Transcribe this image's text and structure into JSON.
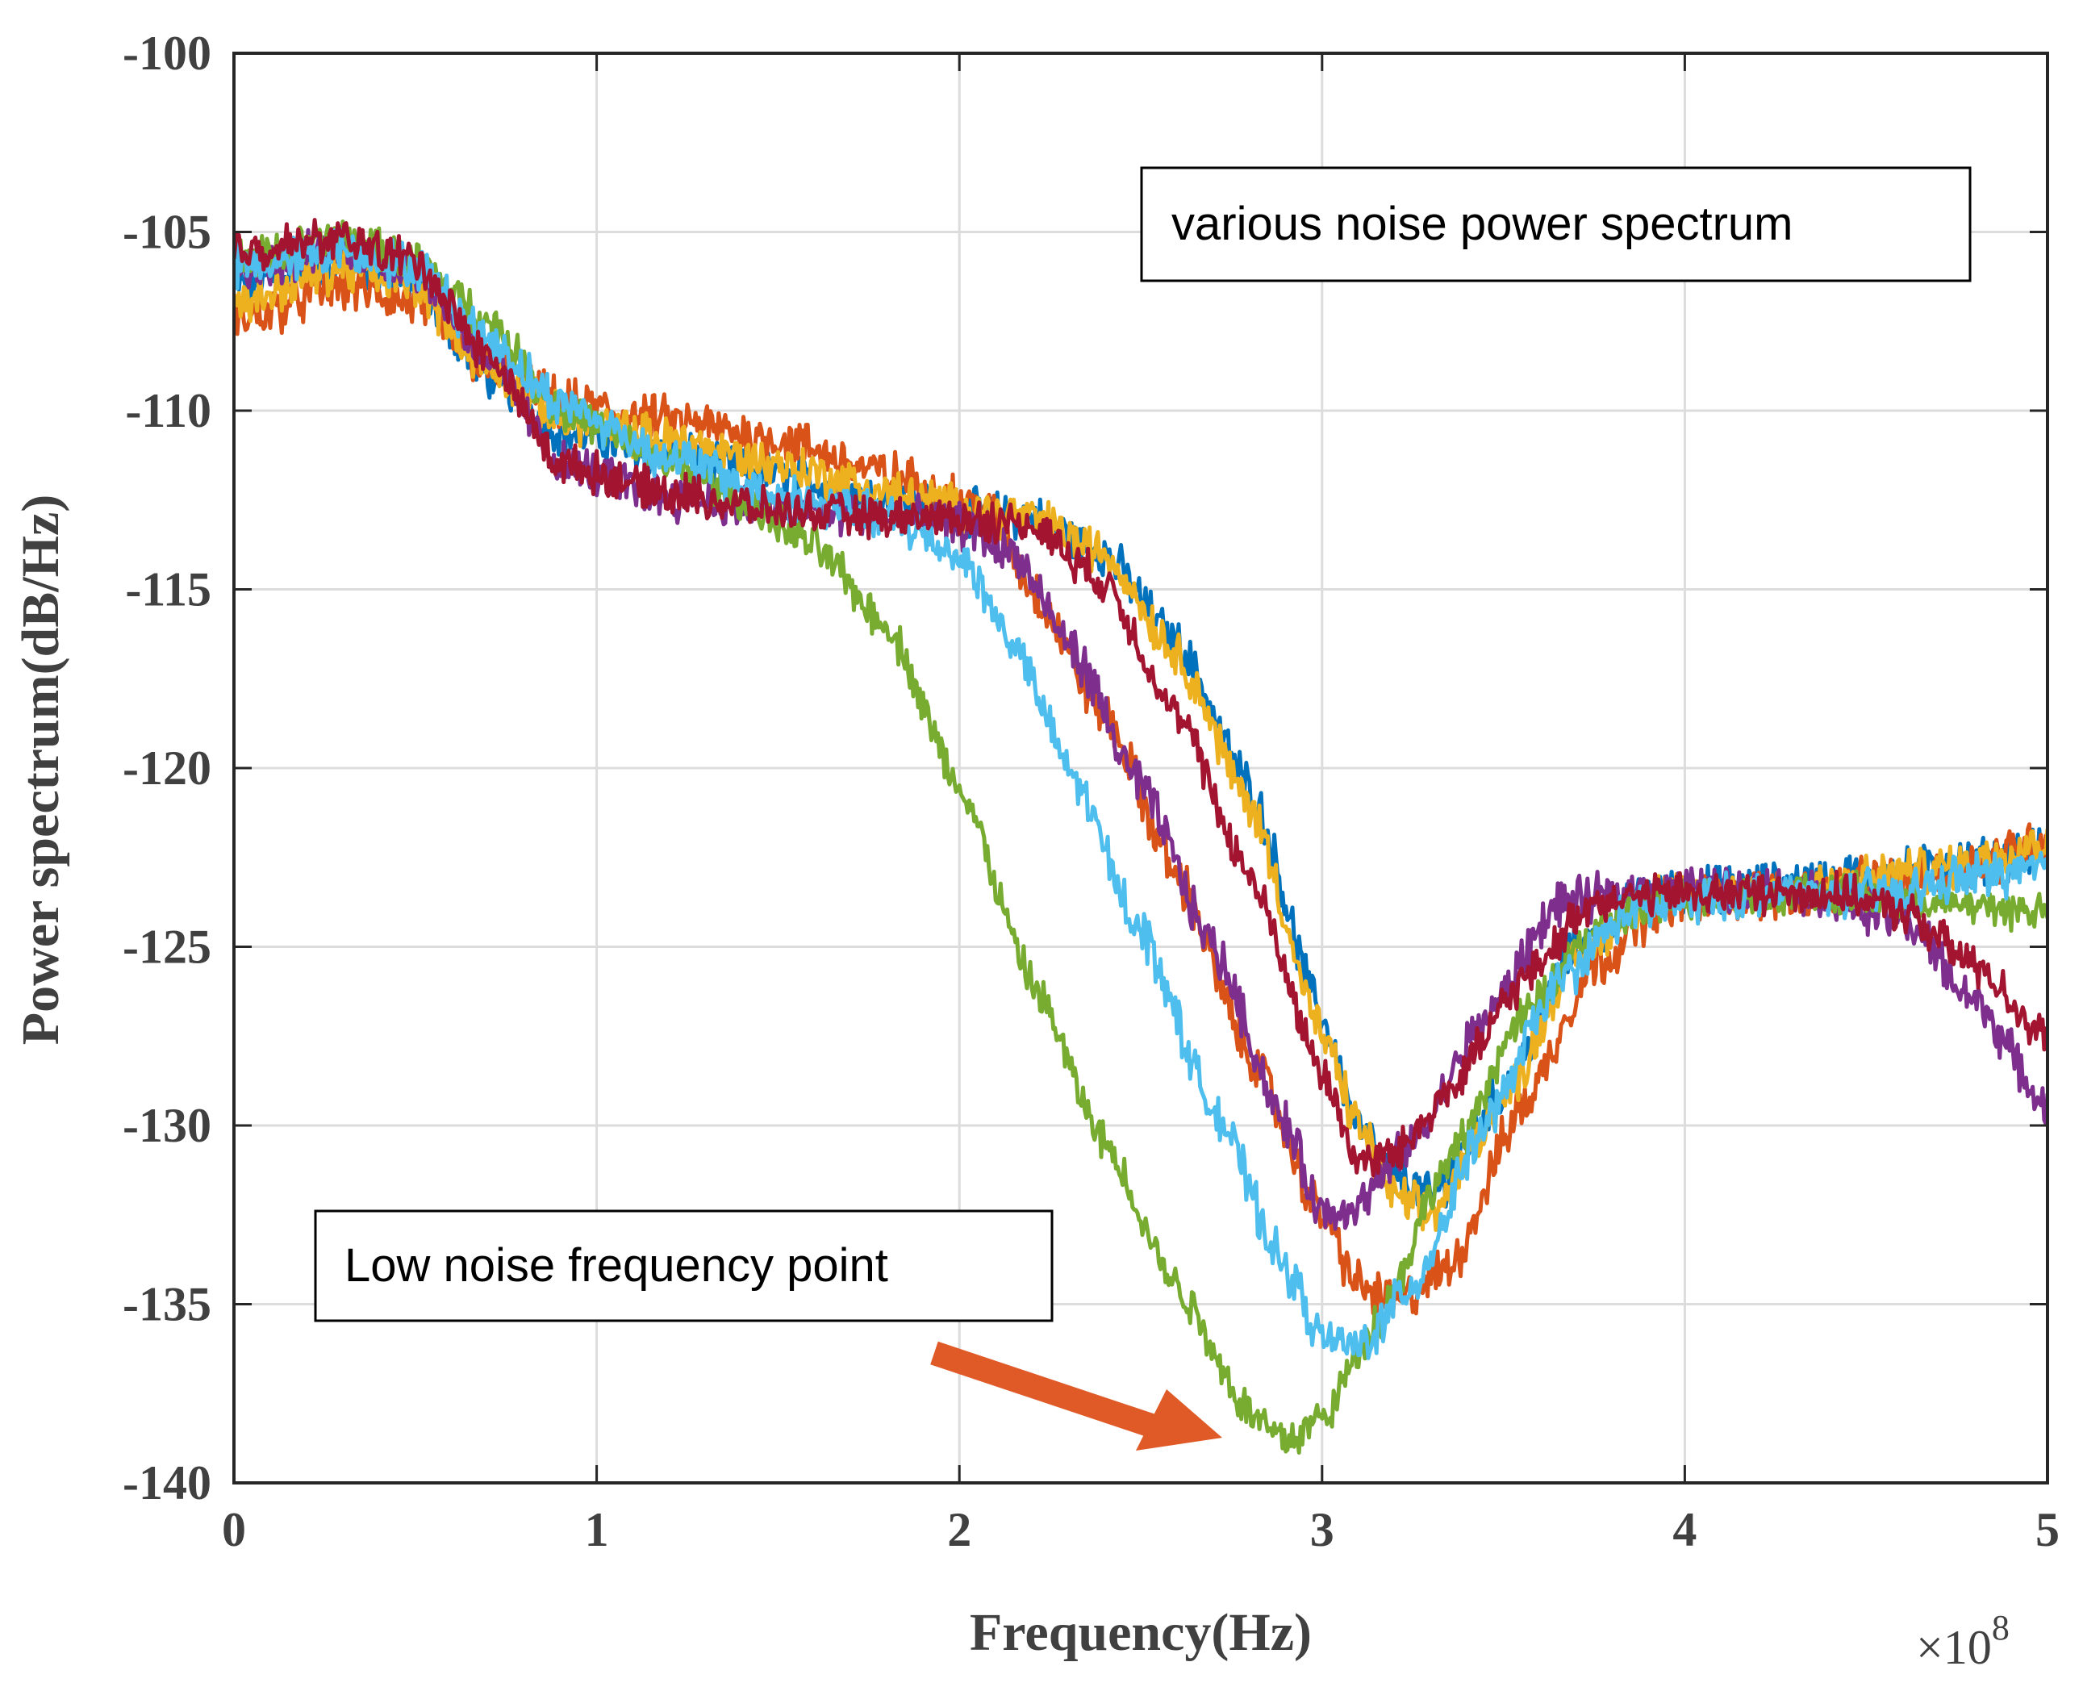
{
  "chart_data": {
    "type": "line",
    "xlabel": "Frequency(Hz)",
    "ylabel": "Power spectrum(dB/Hz)",
    "x_scale_label": "×10",
    "x_scale_exponent": "8",
    "xlim": [
      0,
      5
    ],
    "ylim": [
      -140,
      -100
    ],
    "x_ticks": [
      0,
      1,
      2,
      3,
      4,
      5
    ],
    "y_ticks": [
      -100,
      -105,
      -110,
      -115,
      -120,
      -125,
      -130,
      -135,
      -140
    ],
    "grid": true,
    "annotations": [
      {
        "text": "various noise power spectrum"
      },
      {
        "text": "Low noise frequency point",
        "arrow_target_x": 2.75,
        "arrow_target_y": -139
      }
    ],
    "series": [
      {
        "name": "blue",
        "color": "#0072BD",
        "noise": 0.5,
        "points": [
          [
            0,
            -106.5
          ],
          [
            0.3,
            -105.8
          ],
          [
            0.5,
            -106.5
          ],
          [
            0.7,
            -109
          ],
          [
            0.9,
            -110.6
          ],
          [
            1.2,
            -111.2
          ],
          [
            1.5,
            -111.8
          ],
          [
            1.8,
            -112.5
          ],
          [
            2.0,
            -112.8
          ],
          [
            2.2,
            -113
          ],
          [
            2.4,
            -114
          ],
          [
            2.6,
            -116.5
          ],
          [
            2.8,
            -120.5
          ],
          [
            3.0,
            -127
          ],
          [
            3.1,
            -130
          ],
          [
            3.2,
            -131.5
          ],
          [
            3.3,
            -132
          ],
          [
            3.5,
            -129
          ],
          [
            3.7,
            -125
          ],
          [
            3.9,
            -123.5
          ],
          [
            4.2,
            -123.3
          ],
          [
            4.5,
            -123
          ],
          [
            4.8,
            -122.6
          ],
          [
            5.0,
            -122.3
          ]
        ]
      },
      {
        "name": "orange",
        "color": "#D95319",
        "noise": 0.55,
        "points": [
          [
            0,
            -107.5
          ],
          [
            0.3,
            -106.5
          ],
          [
            0.5,
            -107
          ],
          [
            0.7,
            -108.8
          ],
          [
            0.9,
            -109.8
          ],
          [
            1.2,
            -110.3
          ],
          [
            1.5,
            -110.8
          ],
          [
            1.8,
            -111.8
          ],
          [
            2.0,
            -112.5
          ],
          [
            2.1,
            -113
          ],
          [
            2.2,
            -115
          ],
          [
            2.4,
            -118.5
          ],
          [
            2.6,
            -123
          ],
          [
            2.8,
            -128
          ],
          [
            3.0,
            -132.5
          ],
          [
            3.1,
            -134.5
          ],
          [
            3.2,
            -135
          ],
          [
            3.35,
            -134
          ],
          [
            3.55,
            -129.5
          ],
          [
            3.75,
            -125.5
          ],
          [
            3.95,
            -123.7
          ],
          [
            4.3,
            -123.5
          ],
          [
            4.7,
            -123
          ],
          [
            5.0,
            -122
          ]
        ]
      },
      {
        "name": "yellow",
        "color": "#EDB120",
        "noise": 0.5,
        "points": [
          [
            0,
            -107
          ],
          [
            0.3,
            -106
          ],
          [
            0.5,
            -106.5
          ],
          [
            0.7,
            -108.8
          ],
          [
            0.9,
            -110.2
          ],
          [
            1.2,
            -110.8
          ],
          [
            1.5,
            -111.5
          ],
          [
            1.8,
            -112.3
          ],
          [
            2.0,
            -112.7
          ],
          [
            2.2,
            -113
          ],
          [
            2.4,
            -114
          ],
          [
            2.6,
            -116.8
          ],
          [
            2.8,
            -121
          ],
          [
            3.0,
            -127.5
          ],
          [
            3.1,
            -130
          ],
          [
            3.2,
            -132
          ],
          [
            3.3,
            -132.5
          ],
          [
            3.5,
            -129.3
          ],
          [
            3.7,
            -125.3
          ],
          [
            3.9,
            -123.6
          ],
          [
            4.3,
            -123.4
          ],
          [
            4.7,
            -122.8
          ],
          [
            5.0,
            -122
          ]
        ]
      },
      {
        "name": "purple",
        "color": "#7E2F8E",
        "noise": 0.5,
        "points": [
          [
            0,
            -106
          ],
          [
            0.3,
            -105.5
          ],
          [
            0.5,
            -106
          ],
          [
            0.7,
            -108.5
          ],
          [
            0.9,
            -111.5
          ],
          [
            1.2,
            -112.4
          ],
          [
            1.5,
            -112.8
          ],
          [
            1.8,
            -113
          ],
          [
            2.0,
            -113.2
          ],
          [
            2.15,
            -114
          ],
          [
            2.3,
            -116.5
          ],
          [
            2.5,
            -120.5
          ],
          [
            2.7,
            -125
          ],
          [
            2.9,
            -130
          ],
          [
            3.0,
            -132.5
          ],
          [
            3.1,
            -132.2
          ],
          [
            3.25,
            -130.5
          ],
          [
            3.45,
            -127
          ],
          [
            3.65,
            -123.8
          ],
          [
            3.9,
            -123.4
          ],
          [
            4.3,
            -123.4
          ],
          [
            4.6,
            -124.2
          ],
          [
            4.8,
            -126.5
          ],
          [
            5.0,
            -129.5
          ]
        ]
      },
      {
        "name": "green",
        "color": "#77AC30",
        "noise": 0.45,
        "points": [
          [
            0,
            -105.8
          ],
          [
            0.3,
            -105.2
          ],
          [
            0.5,
            -105.8
          ],
          [
            0.7,
            -107.5
          ],
          [
            0.9,
            -110
          ],
          [
            1.2,
            -111.5
          ],
          [
            1.4,
            -112.5
          ],
          [
            1.6,
            -113.8
          ],
          [
            1.8,
            -116
          ],
          [
            2.0,
            -120.5
          ],
          [
            2.2,
            -126
          ],
          [
            2.4,
            -130.5
          ],
          [
            2.6,
            -134.5
          ],
          [
            2.8,
            -138
          ],
          [
            2.9,
            -138.8
          ],
          [
            3.0,
            -138.2
          ],
          [
            3.15,
            -135.5
          ],
          [
            3.35,
            -131
          ],
          [
            3.55,
            -127
          ],
          [
            3.75,
            -124.5
          ],
          [
            4.0,
            -123.6
          ],
          [
            4.4,
            -123.5
          ],
          [
            4.7,
            -123.8
          ],
          [
            5.0,
            -124
          ]
        ]
      },
      {
        "name": "lightblue",
        "color": "#4DBEEE",
        "noise": 0.5,
        "points": [
          [
            0,
            -106
          ],
          [
            0.3,
            -105.5
          ],
          [
            0.5,
            -106
          ],
          [
            0.7,
            -108
          ],
          [
            0.9,
            -109.8
          ],
          [
            1.2,
            -111.3
          ],
          [
            1.5,
            -112.4
          ],
          [
            1.8,
            -113
          ],
          [
            2.0,
            -114
          ],
          [
            2.15,
            -116.5
          ],
          [
            2.3,
            -120
          ],
          [
            2.5,
            -124.5
          ],
          [
            2.7,
            -129.5
          ],
          [
            2.9,
            -134
          ],
          [
            3.0,
            -136
          ],
          [
            3.1,
            -136.2
          ],
          [
            3.25,
            -134.5
          ],
          [
            3.45,
            -130
          ],
          [
            3.65,
            -126
          ],
          [
            3.85,
            -124
          ],
          [
            4.2,
            -123.5
          ],
          [
            4.6,
            -123.5
          ],
          [
            4.8,
            -123
          ],
          [
            5.0,
            -122.8
          ]
        ]
      },
      {
        "name": "darkred",
        "color": "#A2142F",
        "noise": 0.45,
        "points": [
          [
            0,
            -105.5
          ],
          [
            0.3,
            -105.2
          ],
          [
            0.5,
            -105.8
          ],
          [
            0.7,
            -108.5
          ],
          [
            0.9,
            -111.5
          ],
          [
            1.2,
            -112.3
          ],
          [
            1.5,
            -112.8
          ],
          [
            1.8,
            -113
          ],
          [
            2.0,
            -113
          ],
          [
            2.2,
            -113.2
          ],
          [
            2.4,
            -114.8
          ],
          [
            2.6,
            -118.5
          ],
          [
            2.8,
            -123
          ],
          [
            3.0,
            -128.5
          ],
          [
            3.1,
            -131
          ],
          [
            3.2,
            -130.8
          ],
          [
            3.35,
            -129
          ],
          [
            3.55,
            -126
          ],
          [
            3.75,
            -123.7
          ],
          [
            4.0,
            -123.5
          ],
          [
            4.4,
            -123.5
          ],
          [
            4.6,
            -124
          ],
          [
            4.8,
            -125.5
          ],
          [
            5.0,
            -127.5
          ]
        ]
      }
    ]
  }
}
